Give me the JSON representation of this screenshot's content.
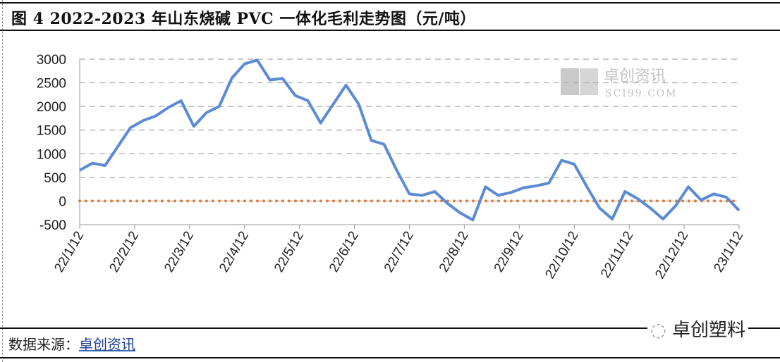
{
  "title": "图 4 2022-2023 年山东烧碱 PVC 一体化毛利走势图（元/吨）",
  "source_label": "数据来源：",
  "source_link": "卓创资讯",
  "watermark": {
    "logo_cn": "卓创资讯",
    "logo_en": "SCI99.COM",
    "wechat": "卓创塑料"
  },
  "chart_data": {
    "type": "line",
    "title": "图 4 2022-2023 年山东烧碱 PVC 一体化毛利走势图（元/吨）",
    "xlabel": "",
    "ylabel": "",
    "ylim": [
      -500,
      3000
    ],
    "y_ticks": [
      "3000",
      "2500",
      "2000",
      "1500",
      "1000",
      "500",
      "0",
      "-500"
    ],
    "x_ticks": [
      "22/1/12",
      "22/2/12",
      "22/3/12",
      "22/4/12",
      "22/5/12",
      "22/6/12",
      "22/7/12",
      "22/8/12",
      "22/9/12",
      "22/10/12",
      "22/11/12",
      "22/12/12",
      "23/1/12"
    ],
    "grid": true,
    "legend": "none",
    "series": [
      {
        "color": "#5b8bd6",
        "values": [
          650,
          800,
          750,
          1150,
          1550,
          1700,
          1800,
          1980,
          2120,
          1580,
          1870,
          2000,
          2600,
          2900,
          2980,
          2560,
          2590,
          2230,
          2120,
          1650,
          2050,
          2450,
          2050,
          1280,
          1200,
          650,
          150,
          120,
          200,
          -50,
          -250,
          -400,
          300,
          120,
          180,
          280,
          320,
          380,
          860,
          780,
          300,
          -150,
          -380,
          200,
          50,
          -150,
          -380,
          -100,
          300,
          20,
          150,
          80,
          -200
        ]
      },
      {
        "color": "#e07b39",
        "style": "dotted",
        "values": [
          0,
          0
        ]
      }
    ]
  }
}
